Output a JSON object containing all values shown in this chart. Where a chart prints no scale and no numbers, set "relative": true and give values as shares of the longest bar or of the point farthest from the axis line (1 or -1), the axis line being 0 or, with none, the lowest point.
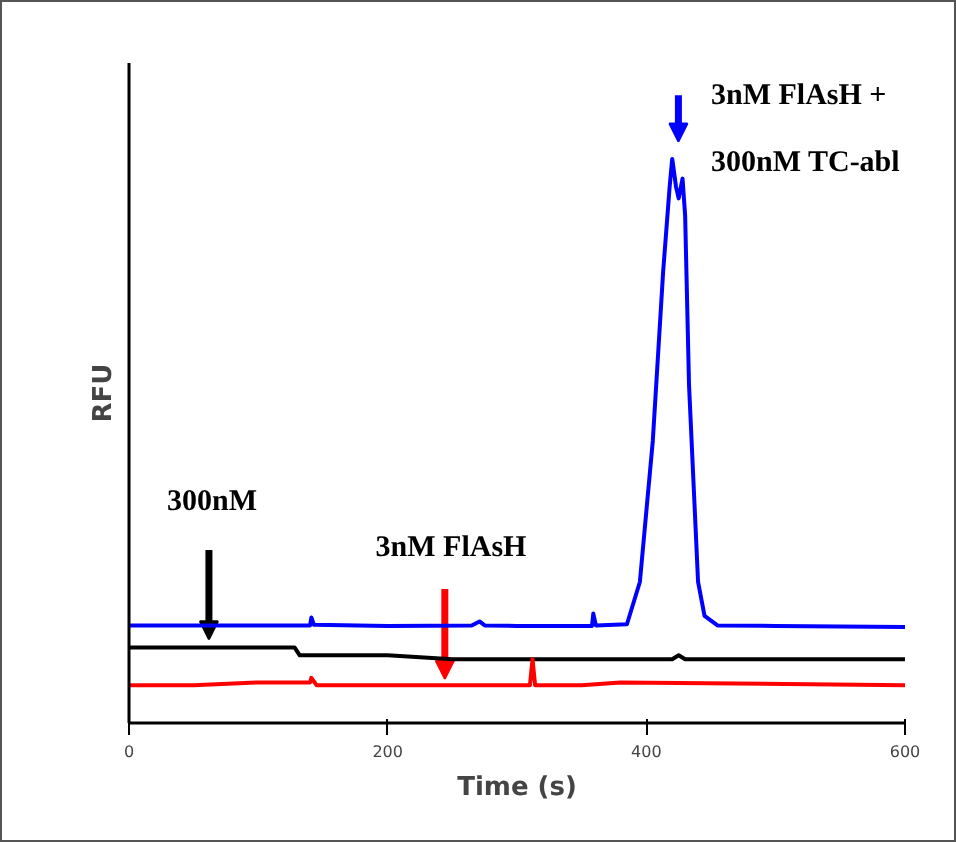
{
  "chart_data": {
    "type": "line",
    "relative": true,
    "xlabel": "Time (s)",
    "ylabel": "RFU",
    "xlim": [
      0,
      600
    ],
    "xticks": [
      0,
      200,
      400,
      600
    ],
    "grid": false,
    "marker": "none",
    "line_style": "solid",
    "series": [
      {
        "color": "#0000ff",
        "x": [
          0,
          140,
          141,
          143,
          200,
          265,
          271,
          275,
          300,
          358,
          359,
          361,
          385,
          395,
          405,
          413,
          418,
          420,
          423,
          425,
          428,
          430,
          433,
          440,
          445,
          455,
          500,
          600
        ],
        "values": [
          0.173,
          0.173,
          0.187,
          0.174,
          0.172,
          0.173,
          0.18,
          0.173,
          0.172,
          0.172,
          0.194,
          0.173,
          0.175,
          0.25,
          0.5,
          0.8,
          0.95,
          1.0,
          0.95,
          0.93,
          0.965,
          0.9,
          0.6,
          0.25,
          0.19,
          0.173,
          0.172,
          0.17
        ]
      },
      {
        "color": "#000000",
        "x": [
          0,
          60,
          128,
          132,
          200,
          250,
          300,
          420,
          425,
          430,
          500,
          600
        ],
        "values": [
          0.134,
          0.134,
          0.134,
          0.12,
          0.12,
          0.113,
          0.113,
          0.113,
          0.12,
          0.113,
          0.113,
          0.113
        ]
      },
      {
        "color": "#ff0000",
        "x": [
          0,
          50,
          100,
          140,
          141,
          145,
          200,
          250,
          310,
          312,
          314,
          350,
          380,
          600
        ],
        "values": [
          0.067,
          0.067,
          0.072,
          0.072,
          0.08,
          0.067,
          0.067,
          0.067,
          0.067,
          0.113,
          0.067,
          0.067,
          0.072,
          0.067
        ]
      }
    ],
    "annotations": [
      "300nM",
      "3nM FlAsH",
      "3nM FlAsH +",
      "300nM TC-abl"
    ]
  }
}
